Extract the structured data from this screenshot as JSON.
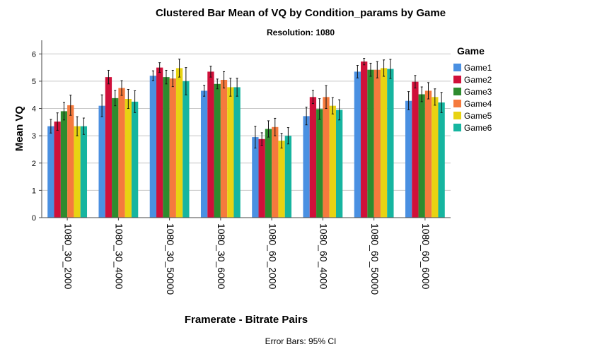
{
  "chart_data": {
    "type": "bar",
    "title": "Clustered Bar Mean of VQ by Condition_params by Game",
    "subtitle": "Resolution: 1080",
    "xlabel": "Framerate - Bitrate Pairs",
    "ylabel": "Mean VQ",
    "ylim": [
      0,
      6.5
    ],
    "yticks": [
      "0",
      "1",
      "2",
      "3",
      "4",
      "5",
      "6"
    ],
    "grid": true,
    "legend_title": "Game",
    "legend_position": "right",
    "footnote": "Error Bars: 95% CI",
    "categories": [
      "1080_30_2000",
      "1080_30_4000",
      "1080_30_50000",
      "1080_30_6000",
      "1080_60_2000",
      "1080_60_4000",
      "1080_60_50000",
      "1080_60_6000"
    ],
    "series": [
      {
        "name": "Game1",
        "color": "#4a90e2",
        "values": [
          3.35,
          4.1,
          5.2,
          4.65,
          2.95,
          3.72,
          5.35,
          4.28
        ],
        "lower": [
          3.1,
          3.7,
          5.02,
          4.45,
          2.55,
          3.4,
          5.12,
          3.95
        ],
        "upper": [
          3.6,
          4.5,
          5.38,
          4.85,
          3.35,
          4.05,
          5.58,
          4.62
        ]
      },
      {
        "name": "Game2",
        "color": "#d0103a",
        "values": [
          3.52,
          5.15,
          5.5,
          5.35,
          2.88,
          4.42,
          5.72,
          4.98
        ],
        "lower": [
          3.2,
          4.9,
          5.32,
          5.15,
          2.65,
          4.18,
          5.6,
          4.75
        ],
        "upper": [
          3.84,
          5.4,
          5.68,
          5.55,
          3.11,
          4.66,
          5.84,
          5.21
        ]
      },
      {
        "name": "Game3",
        "color": "#2e8b2e",
        "values": [
          3.9,
          4.38,
          5.15,
          4.9,
          3.25,
          3.98,
          5.42,
          4.52
        ],
        "lower": [
          3.58,
          4.1,
          4.9,
          4.72,
          2.95,
          3.6,
          5.18,
          4.25
        ],
        "upper": [
          4.22,
          4.66,
          5.4,
          5.08,
          3.55,
          4.36,
          5.66,
          4.79
        ]
      },
      {
        "name": "Game4",
        "color": "#f57a3d",
        "values": [
          4.12,
          4.75,
          5.1,
          5.05,
          3.32,
          4.42,
          5.42,
          4.65
        ],
        "lower": [
          3.75,
          4.48,
          4.8,
          4.75,
          3.0,
          4.0,
          5.12,
          4.35
        ],
        "upper": [
          4.49,
          5.02,
          5.4,
          5.35,
          3.64,
          4.84,
          5.72,
          4.95
        ]
      },
      {
        "name": "Game5",
        "color": "#e8d312",
        "values": [
          3.35,
          4.35,
          5.48,
          4.78,
          2.82,
          4.1,
          5.48,
          4.42
        ],
        "lower": [
          3.0,
          4.0,
          5.15,
          4.45,
          2.55,
          3.8,
          5.18,
          4.12
        ],
        "upper": [
          3.7,
          4.7,
          5.81,
          5.11,
          3.09,
          4.4,
          5.78,
          4.72
        ]
      },
      {
        "name": "Game6",
        "color": "#16b5a0",
        "values": [
          3.35,
          4.25,
          5.0,
          4.78,
          3.0,
          3.95,
          5.45,
          4.22
        ],
        "lower": [
          3.05,
          3.85,
          4.5,
          4.45,
          2.7,
          3.58,
          5.1,
          3.85
        ],
        "upper": [
          3.65,
          4.65,
          5.5,
          5.11,
          3.3,
          4.32,
          5.8,
          4.59
        ]
      }
    ]
  }
}
